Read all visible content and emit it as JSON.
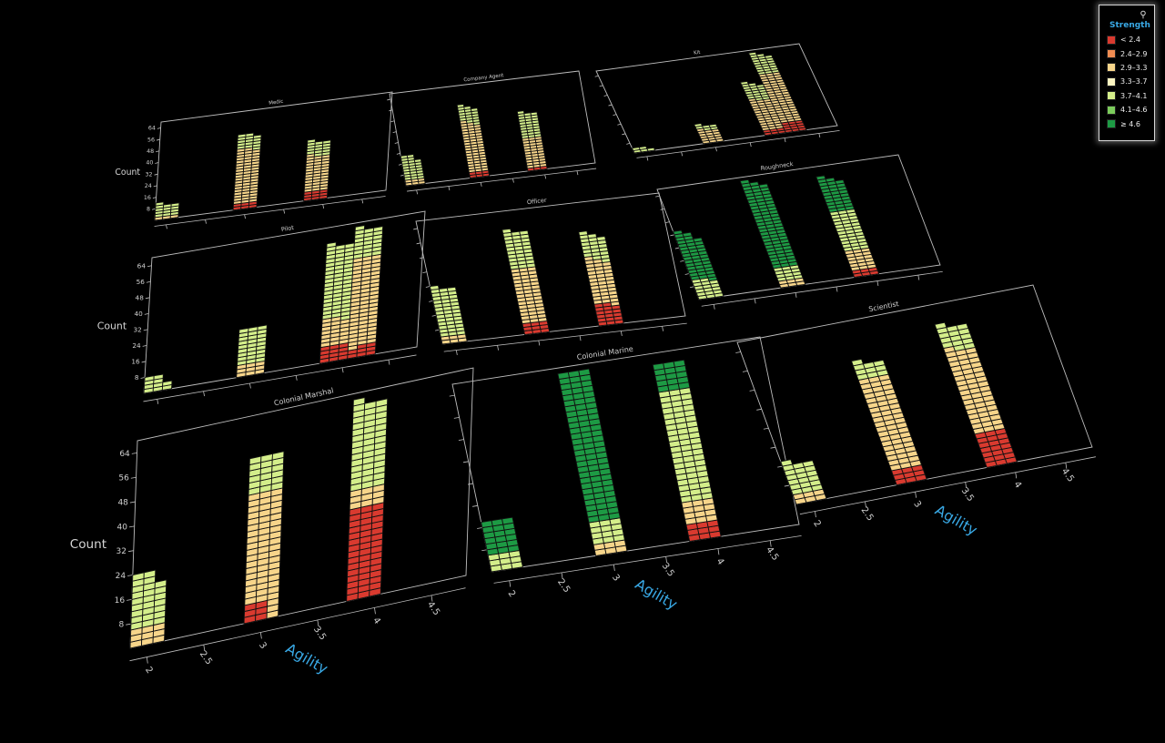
{
  "chart_data": {
    "type": "bar",
    "layout": "3d-faceted-stacked-unit-histogram",
    "x_axis": {
      "label": "Agility",
      "ticks": [
        "2",
        "2.5",
        "3",
        "3.5",
        "4",
        "4.5"
      ],
      "range": [
        1.85,
        4.8
      ]
    },
    "y_axis": {
      "label": "Count",
      "ticks": [
        "8",
        "16",
        "24",
        "32",
        "40",
        "48",
        "56",
        "64"
      ],
      "range": [
        0,
        68
      ]
    },
    "legend": {
      "title": "Strength",
      "placement": "top-right",
      "items": [
        {
          "label": "< 2.4",
          "color": "#d93a2f"
        },
        {
          "label": "2.4–2.9",
          "color": "#f08c52"
        },
        {
          "label": "2.9–3.3",
          "color": "#f7d58a"
        },
        {
          "label": "3.3–3.7",
          "color": "#fbf4c0"
        },
        {
          "label": "3.7–4.1",
          "color": "#d4ee8a"
        },
        {
          "label": "4.1–4.6",
          "color": "#7ccc5c"
        },
        {
          "label": "≥ 4.6",
          "color": "#1d9a44"
        }
      ]
    },
    "facets": [
      {
        "title": "Medic",
        "bars": [
          {
            "x": 1.9,
            "counts": [
              0,
              0,
              2,
              0,
              10,
              0,
              0
            ]
          },
          {
            "x": 2.0,
            "counts": [
              0,
              0,
              2,
              0,
              8,
              0,
              0
            ]
          },
          {
            "x": 2.1,
            "counts": [
              0,
              0,
              2,
              0,
              8,
              0,
              0
            ]
          },
          {
            "x": 2.9,
            "counts": [
              4,
              0,
              38,
              0,
              10,
              0,
              0
            ]
          },
          {
            "x": 3.0,
            "counts": [
              4,
              0,
              38,
              0,
              10,
              0,
              0
            ]
          },
          {
            "x": 3.1,
            "counts": [
              4,
              0,
              36,
              0,
              10,
              0,
              0
            ]
          },
          {
            "x": 3.8,
            "counts": [
              6,
              0,
              26,
              0,
              10,
              0,
              0
            ]
          },
          {
            "x": 3.9,
            "counts": [
              6,
              0,
              24,
              0,
              10,
              0,
              0
            ]
          },
          {
            "x": 4.0,
            "counts": [
              6,
              0,
              24,
              0,
              10,
              0,
              0
            ]
          }
        ]
      },
      {
        "title": "Company Agent",
        "bars": [
          {
            "x": 1.9,
            "counts": [
              0,
              0,
              4,
              0,
              18,
              0,
              0
            ]
          },
          {
            "x": 2.0,
            "counts": [
              0,
              0,
              4,
              0,
              18,
              0,
              0
            ]
          },
          {
            "x": 2.1,
            "counts": [
              0,
              0,
              4,
              0,
              14,
              0,
              0
            ]
          },
          {
            "x": 2.9,
            "counts": [
              4,
              0,
              38,
              0,
              12,
              0,
              0
            ]
          },
          {
            "x": 3.0,
            "counts": [
              4,
              0,
              36,
              0,
              12,
              0,
              0
            ]
          },
          {
            "x": 3.1,
            "counts": [
              4,
              0,
              34,
              0,
              12,
              0,
              0
            ]
          },
          {
            "x": 3.8,
            "counts": [
              2,
              0,
              22,
              0,
              20,
              0,
              0
            ]
          },
          {
            "x": 3.9,
            "counts": [
              2,
              0,
              22,
              0,
              18,
              0,
              0
            ]
          },
          {
            "x": 4.0,
            "counts": [
              2,
              0,
              22,
              0,
              18,
              0,
              0
            ]
          }
        ]
      },
      {
        "title": "Kit",
        "bars": [
          {
            "x": 1.9,
            "counts": [
              0,
              0,
              0,
              0,
              4,
              0,
              0
            ]
          },
          {
            "x": 2.0,
            "counts": [
              0,
              0,
              0,
              0,
              4,
              0,
              0
            ]
          },
          {
            "x": 2.1,
            "counts": [
              0,
              0,
              0,
              0,
              2,
              0,
              0
            ]
          },
          {
            "x": 2.9,
            "counts": [
              0,
              0,
              12,
              0,
              4,
              0,
              0
            ]
          },
          {
            "x": 3.0,
            "counts": [
              0,
              0,
              10,
              0,
              4,
              0,
              0
            ]
          },
          {
            "x": 3.1,
            "counts": [
              0,
              0,
              10,
              0,
              4,
              0,
              0
            ]
          },
          {
            "x": 3.8,
            "counts": [
              4,
              0,
              26,
              0,
              14,
              0,
              0
            ]
          },
          {
            "x": 3.9,
            "counts": [
              4,
              0,
              24,
              0,
              14,
              0,
              0
            ]
          },
          {
            "x": 4.0,
            "counts": [
              4,
              0,
              24,
              0,
              12,
              0,
              0
            ]
          },
          {
            "x": 4.1,
            "counts": [
              8,
              0,
              40,
              0,
              18,
              0,
              0
            ]
          },
          {
            "x": 4.2,
            "counts": [
              8,
              0,
              40,
              0,
              16,
              0,
              0
            ]
          },
          {
            "x": 4.3,
            "counts": [
              8,
              0,
              40,
              0,
              14,
              0,
              0
            ]
          }
        ]
      },
      {
        "title": "Pilot",
        "bars": [
          {
            "x": 1.9,
            "counts": [
              0,
              0,
              0,
              0,
              8,
              0,
              0
            ]
          },
          {
            "x": 2.0,
            "counts": [
              0,
              0,
              0,
              0,
              8,
              0,
              0
            ]
          },
          {
            "x": 2.1,
            "counts": [
              0,
              0,
              0,
              0,
              4,
              0,
              0
            ]
          },
          {
            "x": 2.9,
            "counts": [
              0,
              0,
              6,
              0,
              18,
              0,
              0
            ]
          },
          {
            "x": 3.0,
            "counts": [
              0,
              0,
              6,
              0,
              18,
              0,
              0
            ]
          },
          {
            "x": 3.1,
            "counts": [
              0,
              0,
              6,
              0,
              18,
              0,
              0
            ]
          },
          {
            "x": 3.8,
            "counts": [
              8,
              0,
              14,
              0,
              38,
              0,
              0
            ]
          },
          {
            "x": 3.9,
            "counts": [
              8,
              0,
              14,
              0,
              36,
              0,
              0
            ]
          },
          {
            "x": 4.0,
            "counts": [
              8,
              0,
              12,
              0,
              38,
              0,
              0
            ]
          },
          {
            "x": 4.1,
            "counts": [
              4,
              0,
              46,
              0,
              16,
              0,
              0
            ]
          },
          {
            "x": 4.2,
            "counts": [
              6,
              0,
              44,
              0,
              14,
              0,
              0
            ]
          },
          {
            "x": 4.3,
            "counts": [
              6,
              0,
              44,
              0,
              14,
              0,
              0
            ]
          }
        ]
      },
      {
        "title": "Officer",
        "bars": [
          {
            "x": 1.9,
            "counts": [
              0,
              0,
              4,
              0,
              28,
              0,
              0
            ]
          },
          {
            "x": 2.0,
            "counts": [
              0,
              0,
              4,
              0,
              26,
              0,
              0
            ]
          },
          {
            "x": 2.1,
            "counts": [
              0,
              0,
              4,
              0,
              26,
              0,
              0
            ]
          },
          {
            "x": 2.9,
            "counts": [
              6,
              0,
              30,
              0,
              22,
              0,
              0
            ]
          },
          {
            "x": 3.0,
            "counts": [
              6,
              0,
              30,
              0,
              20,
              0,
              0
            ]
          },
          {
            "x": 3.1,
            "counts": [
              6,
              0,
              30,
              0,
              20,
              0,
              0
            ]
          },
          {
            "x": 3.8,
            "counts": [
              12,
              0,
              26,
              0,
              14,
              0,
              0
            ]
          },
          {
            "x": 3.9,
            "counts": [
              12,
              0,
              24,
              0,
              14,
              0,
              0
            ]
          },
          {
            "x": 4.0,
            "counts": [
              10,
              0,
              24,
              0,
              14,
              0,
              0
            ]
          }
        ]
      },
      {
        "title": "Roughneck",
        "bars": [
          {
            "x": 1.9,
            "counts": [
              0,
              0,
              0,
              0,
              12,
              0,
              30
            ]
          },
          {
            "x": 2.0,
            "counts": [
              0,
              0,
              0,
              0,
              12,
              0,
              28
            ]
          },
          {
            "x": 2.1,
            "counts": [
              0,
              0,
              0,
              0,
              10,
              0,
              26
            ]
          },
          {
            "x": 2.9,
            "counts": [
              0,
              0,
              4,
              0,
              8,
              0,
              54
            ]
          },
          {
            "x": 3.0,
            "counts": [
              0,
              0,
              4,
              0,
              8,
              0,
              52
            ]
          },
          {
            "x": 3.1,
            "counts": [
              0,
              0,
              4,
              0,
              8,
              0,
              50
            ]
          },
          {
            "x": 3.8,
            "counts": [
              4,
              0,
              12,
              0,
              24,
              0,
              22
            ]
          },
          {
            "x": 3.9,
            "counts": [
              4,
              0,
              12,
              0,
              24,
              0,
              20
            ]
          },
          {
            "x": 4.0,
            "counts": [
              4,
              0,
              12,
              0,
              24,
              0,
              18
            ]
          }
        ]
      },
      {
        "title": "Colonial Marshal",
        "bars": [
          {
            "x": 1.9,
            "counts": [
              0,
              0,
              6,
              0,
              18,
              0,
              0
            ]
          },
          {
            "x": 2.0,
            "counts": [
              0,
              0,
              6,
              0,
              18,
              0,
              0
            ]
          },
          {
            "x": 2.1,
            "counts": [
              0,
              0,
              6,
              0,
              14,
              0,
              0
            ]
          },
          {
            "x": 2.9,
            "counts": [
              6,
              0,
              36,
              0,
              12,
              0,
              0
            ]
          },
          {
            "x": 3.0,
            "counts": [
              6,
              0,
              36,
              0,
              12,
              0,
              0
            ]
          },
          {
            "x": 3.1,
            "counts": [
              0,
              0,
              42,
              0,
              12,
              0,
              0
            ]
          },
          {
            "x": 3.8,
            "counts": [
              30,
              0,
              6,
              0,
              30,
              0,
              0
            ]
          },
          {
            "x": 3.9,
            "counts": [
              30,
              0,
              6,
              0,
              28,
              0,
              0
            ]
          },
          {
            "x": 4.0,
            "counts": [
              30,
              0,
              6,
              0,
              28,
              0,
              0
            ]
          }
        ]
      },
      {
        "title": "Colonial Marine",
        "bars": [
          {
            "x": 1.9,
            "counts": [
              0,
              0,
              0,
              0,
              6,
              0,
              12
            ]
          },
          {
            "x": 2.0,
            "counts": [
              0,
              0,
              0,
              0,
              6,
              0,
              12
            ]
          },
          {
            "x": 2.1,
            "counts": [
              0,
              0,
              0,
              0,
              6,
              0,
              12
            ]
          },
          {
            "x": 2.9,
            "counts": [
              0,
              0,
              4,
              0,
              8,
              0,
              54
            ]
          },
          {
            "x": 3.0,
            "counts": [
              0,
              0,
              4,
              0,
              8,
              0,
              54
            ]
          },
          {
            "x": 3.1,
            "counts": [
              0,
              0,
              4,
              0,
              8,
              0,
              54
            ]
          },
          {
            "x": 3.8,
            "counts": [
              6,
              0,
              8,
              0,
              40,
              0,
              10
            ]
          },
          {
            "x": 3.9,
            "counts": [
              6,
              0,
              8,
              0,
              40,
              0,
              10
            ]
          },
          {
            "x": 4.0,
            "counts": [
              6,
              0,
              8,
              0,
              40,
              0,
              10
            ]
          }
        ]
      },
      {
        "title": "Scientist",
        "bars": [
          {
            "x": 1.9,
            "counts": [
              0,
              0,
              4,
              0,
              14,
              0,
              0
            ]
          },
          {
            "x": 2.0,
            "counts": [
              0,
              0,
              4,
              0,
              12,
              0,
              0
            ]
          },
          {
            "x": 2.1,
            "counts": [
              0,
              0,
              4,
              0,
              12,
              0,
              0
            ]
          },
          {
            "x": 2.9,
            "counts": [
              6,
              0,
              38,
              0,
              8,
              0,
              0
            ]
          },
          {
            "x": 3.0,
            "counts": [
              6,
              0,
              38,
              0,
              6,
              0,
              0
            ]
          },
          {
            "x": 3.1,
            "counts": [
              6,
              0,
              38,
              0,
              6,
              0,
              0
            ]
          },
          {
            "x": 3.8,
            "counts": [
              14,
              0,
              36,
              0,
              10,
              0,
              0
            ]
          },
          {
            "x": 3.9,
            "counts": [
              14,
              0,
              34,
              0,
              10,
              0,
              0
            ]
          },
          {
            "x": 4.0,
            "counts": [
              14,
              0,
              34,
              0,
              10,
              0,
              0
            ]
          }
        ]
      }
    ]
  }
}
